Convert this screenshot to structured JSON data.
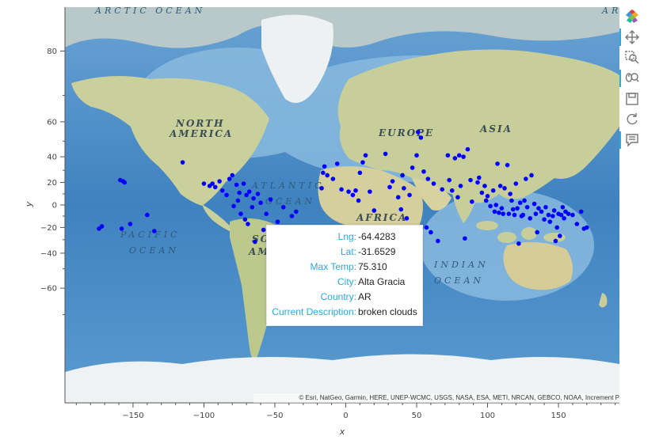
{
  "chart_data": {
    "type": "scatter",
    "title": "",
    "xlabel": "x",
    "ylabel": "y",
    "xlim": [
      -198,
      193
    ],
    "ylim": [
      -85,
      85
    ],
    "x_ticks": [
      -150,
      -100,
      -50,
      0,
      50,
      100,
      150
    ],
    "y_ticks": [
      80,
      60,
      40,
      20,
      0,
      -20,
      -40,
      -60
    ],
    "point_color": "#0000ff",
    "projection": "web-mercator",
    "series": [
      {
        "values": [
          [
            -174,
            -21
          ],
          [
            -172,
            -19
          ],
          [
            -159,
            22
          ],
          [
            -157,
            21
          ],
          [
            -156,
            20
          ],
          [
            -158,
            -21
          ],
          [
            -152,
            -17
          ],
          [
            -140,
            -9
          ],
          [
            -135,
            -23
          ],
          [
            -115,
            36
          ],
          [
            -100,
            19
          ],
          [
            -96,
            17
          ],
          [
            -94,
            19
          ],
          [
            -92,
            16
          ],
          [
            -89,
            21
          ],
          [
            -87,
            13
          ],
          [
            -84,
            9
          ],
          [
            -82,
            23
          ],
          [
            -80,
            26
          ],
          [
            -79,
            -1
          ],
          [
            -77,
            18
          ],
          [
            -76,
            4
          ],
          [
            -75,
            11
          ],
          [
            -74,
            -8
          ],
          [
            -72,
            19
          ],
          [
            -71,
            -13
          ],
          [
            -70,
            9
          ],
          [
            -69,
            -17
          ],
          [
            -68,
            12
          ],
          [
            -66,
            -2
          ],
          [
            -65,
            6
          ],
          [
            -64,
            -31.65
          ],
          [
            -62,
            10
          ],
          [
            -60,
            2
          ],
          [
            -58,
            -22
          ],
          [
            -56,
            -8
          ],
          [
            -53,
            5
          ],
          [
            -51,
            -30
          ],
          [
            -48,
            -15
          ],
          [
            -44,
            -2
          ],
          [
            -40,
            -22
          ],
          [
            -38,
            -10
          ],
          [
            -35,
            -6
          ],
          [
            -17,
            15
          ],
          [
            -16,
            28
          ],
          [
            -15,
            33
          ],
          [
            -13,
            26
          ],
          [
            -9,
            23
          ],
          [
            -6,
            35
          ],
          [
            -3,
            14
          ],
          [
            2,
            12
          ],
          [
            5,
            9
          ],
          [
            7,
            13
          ],
          [
            9,
            4
          ],
          [
            10,
            28
          ],
          [
            12,
            36
          ],
          [
            14,
            41
          ],
          [
            17,
            12
          ],
          [
            20,
            -5
          ],
          [
            28,
            42
          ],
          [
            31,
            16
          ],
          [
            33,
            21
          ],
          [
            37,
            7
          ],
          [
            39,
            -4
          ],
          [
            40,
            26
          ],
          [
            41,
            15
          ],
          [
            43,
            -12
          ],
          [
            45,
            9
          ],
          [
            47,
            32
          ],
          [
            50,
            41
          ],
          [
            51,
            55
          ],
          [
            53,
            52
          ],
          [
            55,
            29
          ],
          [
            57,
            -20
          ],
          [
            58,
            23
          ],
          [
            60,
            -24
          ],
          [
            62,
            19
          ],
          [
            65,
            -31
          ],
          [
            68,
            14
          ],
          [
            72,
            41
          ],
          [
            73,
            22
          ],
          [
            75,
            13
          ],
          [
            77,
            39
          ],
          [
            79,
            7
          ],
          [
            80,
            41
          ],
          [
            81,
            17
          ],
          [
            83,
            40
          ],
          [
            84,
            -29
          ],
          [
            86,
            45
          ],
          [
            88,
            22
          ],
          [
            89,
            3
          ],
          [
            93,
            20
          ],
          [
            94,
            24
          ],
          [
            96,
            11
          ],
          [
            98,
            17
          ],
          [
            99,
            4
          ],
          [
            100,
            8
          ],
          [
            102,
            -1
          ],
          [
            104,
            13
          ],
          [
            105,
            -6
          ],
          [
            106,
            0
          ],
          [
            107,
            35
          ],
          [
            108,
            -7
          ],
          [
            109,
            17
          ],
          [
            110,
            -3
          ],
          [
            111,
            -8
          ],
          [
            112,
            15
          ],
          [
            114,
            34
          ],
          [
            115,
            -8
          ],
          [
            116,
            10
          ],
          [
            117,
            4
          ],
          [
            118,
            -4
          ],
          [
            119,
            -9
          ],
          [
            120,
            19
          ],
          [
            121,
            -3
          ],
          [
            122,
            -33
          ],
          [
            123,
            2
          ],
          [
            124,
            -10
          ],
          [
            125,
            -9
          ],
          [
            126,
            4
          ],
          [
            127,
            23
          ],
          [
            128,
            -2
          ],
          [
            130,
            -12
          ],
          [
            131,
            26
          ],
          [
            133,
            1
          ],
          [
            134,
            -8
          ],
          [
            135,
            -24
          ],
          [
            136,
            -3
          ],
          [
            138,
            -6
          ],
          [
            140,
            -13
          ],
          [
            141,
            -2
          ],
          [
            143,
            -9
          ],
          [
            144,
            -15
          ],
          [
            146,
            -10
          ],
          [
            147,
            -5
          ],
          [
            148,
            -31
          ],
          [
            149,
            -20
          ],
          [
            150,
            -8
          ],
          [
            151,
            -27
          ],
          [
            152,
            -9
          ],
          [
            153,
            -2
          ],
          [
            154,
            -12
          ],
          [
            155,
            -6
          ],
          [
            157,
            -8
          ],
          [
            160,
            -9
          ],
          [
            163,
            -17
          ],
          [
            166,
            -6
          ],
          [
            168,
            -21
          ],
          [
            170,
            -20
          ]
        ]
      }
    ]
  },
  "geo_labels": {
    "arctic_ocean": "ARCTIC OCEAN",
    "arctic_ocean_right": "AR",
    "north_america_1": "NORTH",
    "north_america_2": "AMERICA",
    "atlantic_1": "ATLANTIC",
    "atlantic_2": "OCEAN",
    "europe": "EUROPE",
    "asia": "ASIA",
    "africa": "AFRICA",
    "pacific_1": "PACIFIC",
    "pacific_2": "OCEAN",
    "south_america_1": "SO",
    "south_america_2": "AM",
    "indian_1": "INDIAN",
    "indian_2": "OCEAN"
  },
  "tooltip": {
    "rows": [
      {
        "key": "Lng:",
        "value": "-64.4283"
      },
      {
        "key": "Lat:",
        "value": "-31.6529"
      },
      {
        "key": "Max Temp:",
        "value": "75.310"
      },
      {
        "key": "City:",
        "value": "Alta Gracia"
      },
      {
        "key": "Country:",
        "value": "AR"
      },
      {
        "key": "Current Description:",
        "value": "broken clouds"
      }
    ]
  },
  "attribution": "© Esri, NatGeo, Garmin, HERE, UNEP-WCMC, USGS, NASA, ESA, METI, NRCAN, GEBCO, NOAA, Increment P",
  "toolbar": {
    "tools": [
      "bokeh-logo-icon",
      "pan-icon",
      "box-zoom-icon",
      "wheel-zoom-icon",
      "save-icon",
      "reset-icon",
      "hover-icon"
    ]
  },
  "colors": {
    "ocean_deep": "#4e8fc9",
    "ocean_light": "#a7cfe9",
    "land": "#c8cf9a",
    "ice": "#eef2f2",
    "tooltip_key": "#26aae1",
    "points": "#0000ff"
  }
}
